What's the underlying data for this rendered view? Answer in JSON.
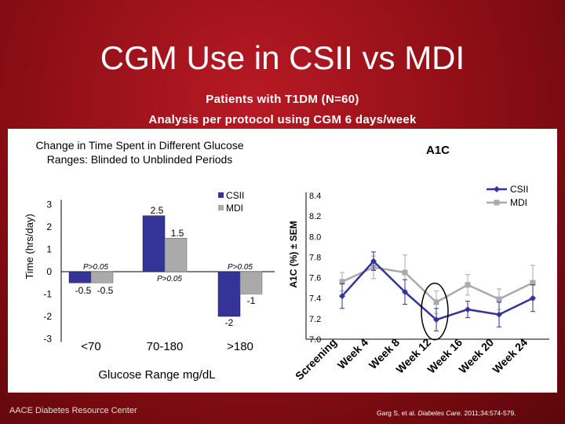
{
  "slide": {
    "title": "CGM Use in CSII vs MDI",
    "subtitle_line1": "Patients with T1DM (N=60)",
    "subtitle_line2": "Analysis per protocol using CGM 6 days/week",
    "footer_left": "AACE Diabetes Resource Center",
    "citation_prefix": "Garg S, et al. ",
    "citation_journal": "Diabetes Care.",
    "citation_suffix": " 2011;34:574-579."
  },
  "colors": {
    "csii": "#333399",
    "mdi": "#aaaaaa",
    "background": "#9e1119"
  },
  "chart_data": [
    {
      "type": "bar",
      "title_line1": "Change in Time Spent in Different Glucose",
      "title_line2": "Ranges: Blinded to Unblinded Periods",
      "xlabel": "Glucose Range mg/dL",
      "ylabel": "Time (hrs/day)",
      "ylim": [
        -3,
        3
      ],
      "yticks": [
        "3",
        "2",
        "1",
        "0",
        "-1",
        "-2",
        "-3"
      ],
      "categories": [
        "<70",
        "70-180",
        ">180"
      ],
      "series": [
        {
          "name": "CSII",
          "values": [
            -0.5,
            2.5,
            -2
          ]
        },
        {
          "name": "MDI",
          "values": [
            -0.5,
            1.5,
            -1
          ]
        }
      ],
      "data_labels": {
        "csii": [
          "-0.5",
          "2.5",
          "-2"
        ],
        "mdi": [
          "-0.5",
          "1.5",
          "-1"
        ]
      },
      "annotations": [
        "P>0.05",
        "P>0.05",
        "P>0.05"
      ],
      "legend": [
        "CSII",
        "MDI"
      ],
      "legend_position": "top-right"
    },
    {
      "type": "line",
      "title": "A1C",
      "ylabel": "A1C (%) ± SEM",
      "ylim": [
        7.0,
        8.4
      ],
      "yticks": [
        "8.4",
        "8.2",
        "8.0",
        "7.8",
        "7.6",
        "7.4",
        "7.2",
        "7.0"
      ],
      "categories": [
        "Screening",
        "Week 4",
        "Week 8",
        "Week 12",
        "Week 16",
        "Week 20",
        "Week 24"
      ],
      "series": [
        {
          "name": "CSII",
          "values": [
            7.42,
            7.76,
            7.46,
            7.19,
            7.29,
            7.24,
            7.4
          ]
        },
        {
          "name": "MDI",
          "values": [
            7.56,
            7.7,
            7.65,
            7.36,
            7.53,
            7.39,
            7.55
          ]
        }
      ],
      "error_bars": {
        "csii": [
          0.12,
          0.09,
          0.12,
          0.11,
          0.08,
          0.12,
          0.13
        ],
        "mdi": [
          0.09,
          0.11,
          0.17,
          0.11,
          0.1,
          0.1,
          0.17
        ]
      },
      "legend": [
        "CSII",
        "MDI"
      ],
      "legend_position": "top-right",
      "highlight": "Week 12"
    }
  ]
}
